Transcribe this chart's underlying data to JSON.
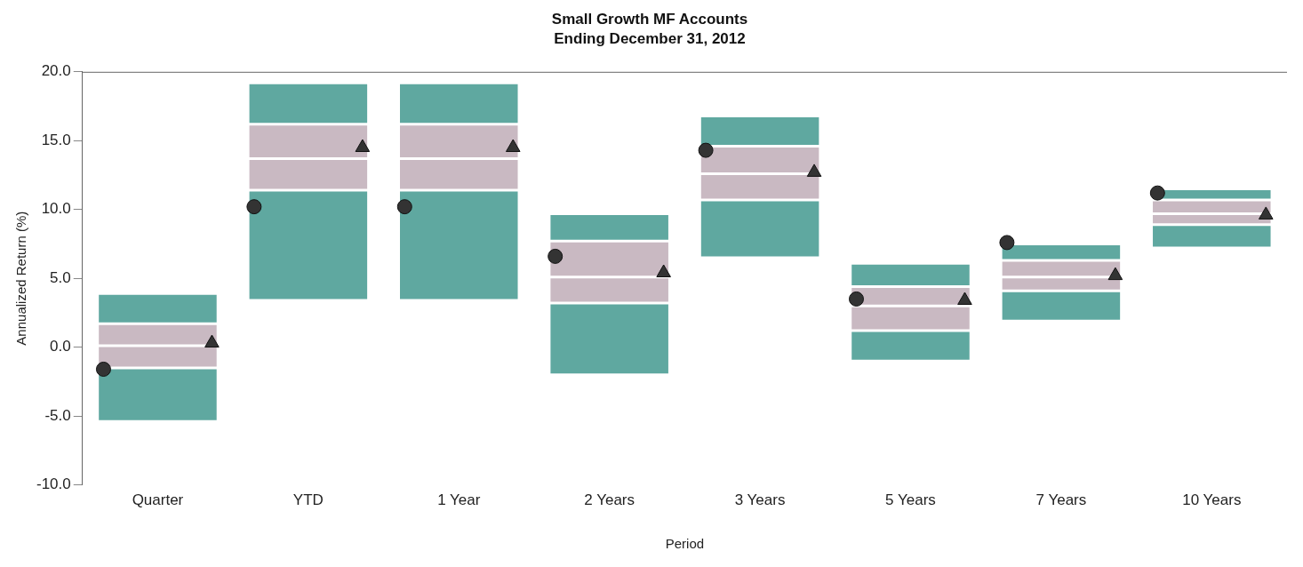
{
  "chart_data": {
    "type": "bar",
    "title": "Small Growth MF Accounts",
    "subtitle": "Ending December 31, 2012",
    "xlabel": "Period",
    "ylabel": "Annualized Return (%)",
    "categories": [
      "Quarter",
      "YTD",
      "1 Year",
      "2 Years",
      "3 Years",
      "5 Years",
      "7 Years",
      "10 Years"
    ],
    "series": [
      {
        "color": "#5fa8a0",
        "base": [
          -5.4,
          3.4,
          3.4,
          -2.0,
          6.5,
          -1.0,
          1.9,
          7.2
        ],
        "values": [
          3.9,
          8.0,
          8.0,
          5.2,
          4.2,
          2.2,
          2.2,
          1.7
        ]
      },
      {
        "color": "#c9b9c2",
        "base": [
          -1.5,
          11.4,
          11.4,
          3.2,
          10.7,
          1.2,
          4.1,
          8.9
        ],
        "values": [
          1.6,
          2.3,
          2.3,
          1.9,
          1.9,
          1.8,
          1.0,
          0.8
        ]
      },
      {
        "color": "#c9b9c2",
        "base": [
          0.1,
          13.7,
          13.7,
          5.1,
          12.6,
          3.0,
          5.1,
          9.7
        ],
        "values": [
          1.6,
          2.5,
          2.5,
          2.6,
          2.0,
          1.4,
          1.2,
          1.0
        ]
      },
      {
        "color": "#5fa8a0",
        "base": [
          1.7,
          16.2,
          16.2,
          7.7,
          14.6,
          4.4,
          6.3,
          10.7
        ],
        "values": [
          2.2,
          3.0,
          3.0,
          2.0,
          2.2,
          1.7,
          1.2,
          0.8
        ]
      },
      {
        "type": "scatter",
        "marker": "circle",
        "color": "#333333",
        "values": [
          -1.6,
          10.2,
          10.2,
          6.6,
          14.3,
          3.5,
          7.6,
          11.2
        ]
      },
      {
        "type": "scatter",
        "marker": "triangle",
        "color": "#333333",
        "values": [
          0.3,
          14.5,
          14.5,
          5.4,
          12.7,
          3.4,
          5.2,
          9.6
        ]
      }
    ],
    "ylim": [
      -10,
      20
    ],
    "yticks": [
      {
        "value": -10,
        "label": "-10.0"
      },
      {
        "value": -5,
        "label": "-5.0"
      },
      {
        "value": 0,
        "label": "0.0"
      },
      {
        "value": 5,
        "label": "5.0"
      },
      {
        "value": 10,
        "label": "10.0"
      },
      {
        "value": 15,
        "label": "15.0"
      },
      {
        "value": 20,
        "label": "20.0"
      }
    ]
  }
}
